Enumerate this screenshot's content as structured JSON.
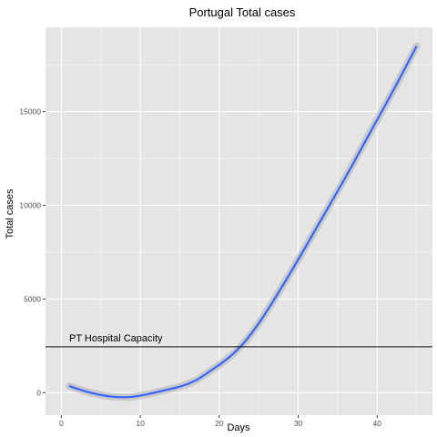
{
  "chart_data": {
    "type": "line",
    "title": "Portugal Total cases",
    "xlabel": "Days",
    "ylabel": "Total cases",
    "xlim": [
      -2,
      47
    ],
    "ylim": [
      -1200,
      19500
    ],
    "xticks": [
      0,
      10,
      20,
      30,
      40
    ],
    "yticks": [
      0,
      5000,
      10000,
      15000
    ],
    "grid": true,
    "series": [
      {
        "x": [
          1,
          3,
          5,
          7,
          9,
          11,
          13,
          15,
          17,
          19,
          21,
          23,
          25,
          27,
          30,
          33,
          36,
          39,
          42,
          45
        ],
        "y": [
          350,
          80,
          -120,
          -230,
          -220,
          -80,
          120,
          320,
          650,
          1200,
          1800,
          2600,
          3700,
          5000,
          7100,
          9300,
          11500,
          13800,
          16100,
          18500
        ],
        "color": "#3366ff",
        "band_color": "#bfbfbf"
      }
    ],
    "reference_line": {
      "y": 2450,
      "label": "PT Hospital Capacity",
      "label_x": 1,
      "color": "#000000"
    },
    "panel_background": "#e5e5e5",
    "grid_color": "#ffffff"
  }
}
